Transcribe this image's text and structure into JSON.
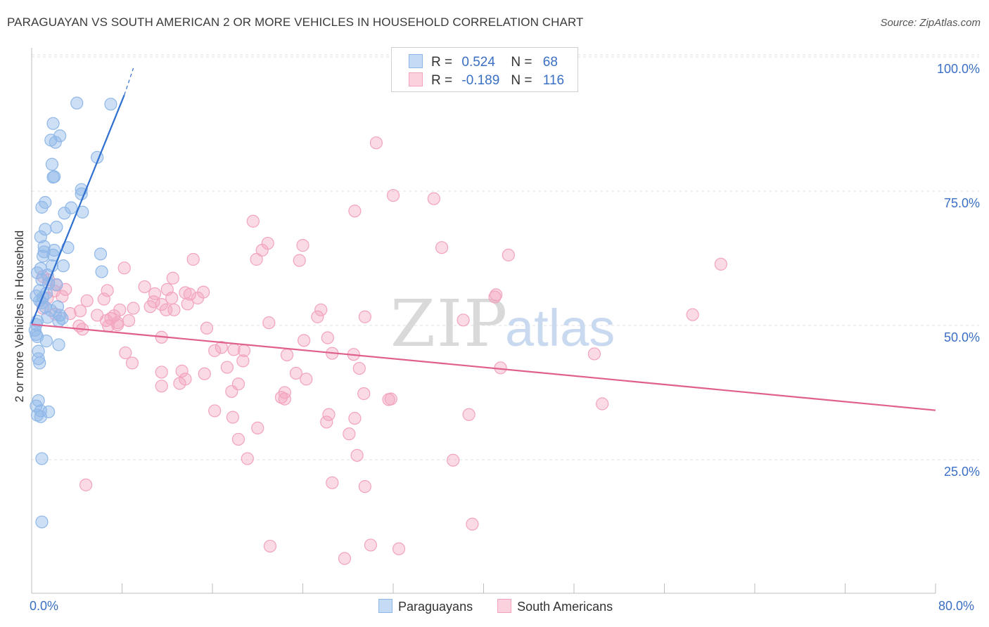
{
  "title": "PARAGUAYAN VS SOUTH AMERICAN 2 OR MORE VEHICLES IN HOUSEHOLD CORRELATION CHART",
  "source": "Source: ZipAtlas.com",
  "watermark": {
    "zip": "ZIP",
    "atlas": "atlas"
  },
  "legend": {
    "rows": [
      {
        "r_label": "R =",
        "r_value": "0.524",
        "n_label": "N =",
        "n_value": "68"
      },
      {
        "r_label": "R =",
        "r_value": "-0.189",
        "n_label": "N =",
        "n_value": "116"
      }
    ],
    "bottom": [
      "Paraguayans",
      "South Americans"
    ]
  },
  "chart_data": {
    "type": "scatter",
    "title": "PARAGUAYAN VS SOUTH AMERICAN 2 OR MORE VEHICLES IN HOUSEHOLD CORRELATION CHART",
    "xlabel": "",
    "ylabel": "2 or more Vehicles in Household",
    "xlim": [
      0,
      80
    ],
    "ylim": [
      0,
      105
    ],
    "x_tick_labels": [
      "0.0%",
      "80.0%"
    ],
    "y_tick_labels": [
      "25.0%",
      "50.0%",
      "75.0%",
      "100.0%"
    ],
    "y_ticks": [
      25,
      50,
      75,
      100
    ],
    "grid": true,
    "legend_placement": "top-center",
    "colors": {
      "paraguayans": "#8fb7e8",
      "paraguayans_line": "#2f6fd0",
      "south_americans": "#f2a3bd",
      "south_americans_line": "#e0608d",
      "tick_text": "#3a6fc4"
    },
    "series": [
      {
        "name": "Paraguayans",
        "r": 0.524,
        "n": 68,
        "trend": {
          "x": [
            0,
            8.2
          ],
          "y": [
            52.4,
            95.0
          ],
          "dashed_to": [
            9.0,
            100.0
          ]
        },
        "points": [
          [
            4.0,
            93.5
          ],
          [
            7.0,
            93.3
          ],
          [
            1.9,
            89.7
          ],
          [
            1.7,
            86.6
          ],
          [
            2.5,
            87.4
          ],
          [
            2.1,
            86.2
          ],
          [
            5.8,
            83.4
          ],
          [
            1.8,
            82.1
          ],
          [
            1.9,
            79.7
          ],
          [
            2.0,
            79.8
          ],
          [
            4.4,
            77.4
          ],
          [
            4.4,
            76.6
          ],
          [
            1.2,
            75.0
          ],
          [
            0.9,
            74.1
          ],
          [
            3.5,
            74.0
          ],
          [
            4.5,
            73.2
          ],
          [
            2.9,
            73.0
          ],
          [
            2.2,
            70.4
          ],
          [
            1.2,
            70.0
          ],
          [
            0.8,
            68.6
          ],
          [
            1.1,
            66.8
          ],
          [
            3.2,
            66.6
          ],
          [
            1.1,
            65.8
          ],
          [
            2.0,
            66.1
          ],
          [
            6.1,
            65.4
          ],
          [
            1.0,
            65.0
          ],
          [
            1.9,
            65.2
          ],
          [
            1.8,
            63.2
          ],
          [
            2.8,
            63.2
          ],
          [
            0.8,
            62.7
          ],
          [
            6.2,
            62.1
          ],
          [
            0.5,
            61.9
          ],
          [
            1.4,
            61.5
          ],
          [
            0.9,
            60.6
          ],
          [
            1.5,
            59.9
          ],
          [
            2.2,
            59.7
          ],
          [
            0.7,
            58.6
          ],
          [
            1.3,
            58.1
          ],
          [
            0.4,
            57.6
          ],
          [
            1.0,
            57.3
          ],
          [
            0.7,
            56.7
          ],
          [
            0.9,
            56.3
          ],
          [
            1.2,
            55.5
          ],
          [
            2.3,
            55.6
          ],
          [
            1.7,
            54.9
          ],
          [
            2.5,
            54.0
          ],
          [
            1.4,
            53.6
          ],
          [
            2.7,
            53.4
          ],
          [
            2.4,
            52.9
          ],
          [
            0.5,
            52.9
          ],
          [
            0.4,
            52.3
          ],
          [
            0.3,
            51.2
          ],
          [
            0.4,
            50.4
          ],
          [
            0.5,
            50.0
          ],
          [
            1.3,
            49.2
          ],
          [
            2.4,
            48.5
          ],
          [
            0.6,
            47.3
          ],
          [
            0.6,
            45.9
          ],
          [
            0.7,
            45.1
          ],
          [
            0.6,
            38.1
          ],
          [
            0.4,
            37.1
          ],
          [
            0.8,
            36.2
          ],
          [
            1.5,
            36.0
          ],
          [
            0.5,
            35.4
          ],
          [
            0.8,
            35.1
          ],
          [
            0.9,
            27.3
          ],
          [
            0.9,
            15.5
          ]
        ]
      },
      {
        "name": "South Americans",
        "r": -0.189,
        "n": 116,
        "trend": {
          "x": [
            0,
            80
          ],
          "y": [
            52.3,
            36.3
          ]
        },
        "points": [
          [
            30.5,
            86.1
          ],
          [
            32.0,
            76.3
          ],
          [
            35.6,
            75.7
          ],
          [
            28.6,
            73.4
          ],
          [
            19.6,
            71.5
          ],
          [
            20.9,
            67.4
          ],
          [
            24.0,
            67.0
          ],
          [
            36.3,
            66.6
          ],
          [
            20.4,
            66.1
          ],
          [
            42.2,
            65.2
          ],
          [
            14.3,
            64.4
          ],
          [
            19.9,
            64.4
          ],
          [
            23.7,
            64.2
          ],
          [
            61.0,
            63.5
          ],
          [
            8.2,
            62.8
          ],
          [
            1.0,
            61.2
          ],
          [
            12.5,
            60.9
          ],
          [
            1.5,
            60.6
          ],
          [
            2.2,
            59.6
          ],
          [
            10.0,
            59.3
          ],
          [
            3.0,
            58.8
          ],
          [
            12.0,
            58.8
          ],
          [
            2.0,
            58.5
          ],
          [
            6.7,
            58.6
          ],
          [
            15.2,
            58.3
          ],
          [
            13.6,
            58.2
          ],
          [
            10.9,
            58.0
          ],
          [
            14.0,
            57.9
          ],
          [
            41.1,
            57.8
          ],
          [
            2.7,
            57.5
          ],
          [
            12.4,
            57.2
          ],
          [
            14.7,
            57.2
          ],
          [
            41.0,
            57.4
          ],
          [
            1.4,
            57.2
          ],
          [
            6.4,
            57.0
          ],
          [
            10.8,
            56.5
          ],
          [
            4.9,
            56.7
          ],
          [
            11.5,
            56.0
          ],
          [
            13.8,
            56.1
          ],
          [
            10.5,
            55.6
          ],
          [
            12.6,
            55.0
          ],
          [
            9.0,
            55.3
          ],
          [
            1.0,
            55.3
          ],
          [
            4.3,
            54.8
          ],
          [
            7.8,
            55.0
          ],
          [
            11.9,
            55.0
          ],
          [
            25.6,
            55.0
          ],
          [
            3.4,
            54.3
          ],
          [
            2.1,
            54.2
          ],
          [
            5.8,
            54.0
          ],
          [
            7.3,
            53.9
          ],
          [
            7.0,
            53.4
          ],
          [
            58.5,
            54.1
          ],
          [
            25.3,
            53.7
          ],
          [
            29.5,
            53.7
          ],
          [
            6.6,
            53.0
          ],
          [
            8.6,
            53.0
          ],
          [
            7.6,
            52.6
          ],
          [
            38.2,
            53.1
          ],
          [
            21.0,
            52.6
          ],
          [
            4.2,
            52.0
          ],
          [
            6.8,
            52.0
          ],
          [
            7.6,
            52.2
          ],
          [
            4.5,
            51.4
          ],
          [
            15.5,
            51.6
          ],
          [
            11.5,
            49.9
          ],
          [
            26.2,
            49.8
          ],
          [
            24.1,
            49.3
          ],
          [
            16.8,
            48.0
          ],
          [
            8.3,
            47.0
          ],
          [
            17.9,
            47.6
          ],
          [
            16.2,
            47.4
          ],
          [
            18.8,
            47.4
          ],
          [
            22.6,
            46.6
          ],
          [
            26.6,
            46.9
          ],
          [
            28.5,
            46.7
          ],
          [
            49.8,
            46.8
          ],
          [
            18.7,
            45.5
          ],
          [
            8.9,
            45.1
          ],
          [
            17.3,
            44.3
          ],
          [
            29.0,
            44.1
          ],
          [
            41.5,
            44.2
          ],
          [
            11.5,
            43.4
          ],
          [
            13.3,
            43.6
          ],
          [
            15.3,
            43.1
          ],
          [
            23.4,
            43.2
          ],
          [
            13.6,
            42.1
          ],
          [
            24.3,
            42.1
          ],
          [
            13.1,
            41.3
          ],
          [
            18.3,
            41.2
          ],
          [
            11.5,
            40.8
          ],
          [
            17.7,
            39.8
          ],
          [
            22.4,
            39.6
          ],
          [
            29.4,
            39.4
          ],
          [
            22.1,
            38.7
          ],
          [
            22.4,
            38.4
          ],
          [
            31.8,
            38.4
          ],
          [
            31.6,
            38.3
          ],
          [
            50.5,
            37.5
          ],
          [
            16.2,
            36.2
          ],
          [
            26.3,
            35.5
          ],
          [
            38.7,
            35.5
          ],
          [
            17.8,
            35.0
          ],
          [
            28.6,
            34.8
          ],
          [
            26.1,
            34.1
          ],
          [
            20.0,
            33.0
          ],
          [
            28.1,
            31.9
          ],
          [
            18.3,
            30.9
          ],
          [
            28.8,
            27.9
          ],
          [
            19.1,
            27.3
          ],
          [
            37.3,
            27.0
          ],
          [
            26.6,
            22.8
          ],
          [
            29.5,
            22.1
          ],
          [
            4.8,
            22.4
          ],
          [
            39.0,
            15.1
          ],
          [
            21.1,
            11.0
          ],
          [
            30.0,
            11.2
          ],
          [
            32.5,
            10.5
          ],
          [
            27.7,
            8.7
          ]
        ]
      }
    ]
  }
}
